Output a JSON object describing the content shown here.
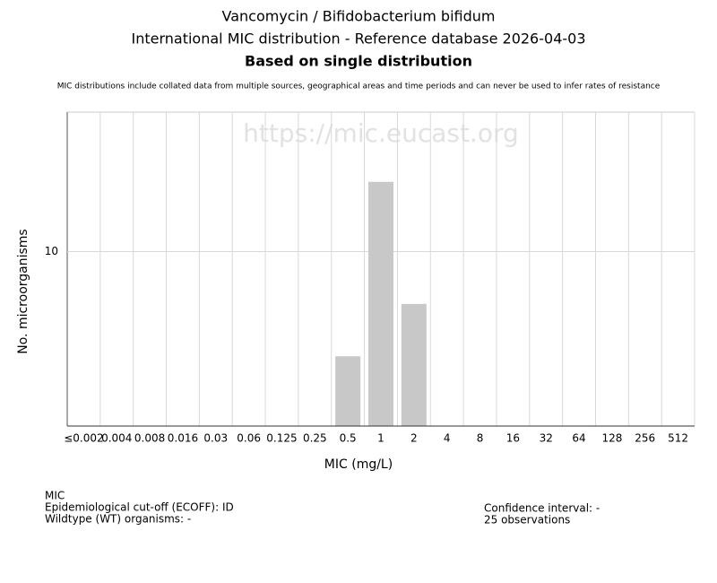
{
  "chart_data": {
    "type": "bar",
    "title": "Vancomycin / Bifidobacterium bifidum",
    "subtitle": "International MIC distribution - Reference database 2026-04-03",
    "subtitle2": "Based on single distribution",
    "note": "MIC distributions include collated data from multiple sources, geographical areas and time periods and can never be used to infer rates of resistance",
    "watermark": "https://mic.eucast.org",
    "x_label": "MIC (mg/L)",
    "y_label": "No. microorganisms",
    "categories": [
      "≤0.002",
      "0.004",
      "0.008",
      "0.016",
      "0.03",
      "0.06",
      "0.125",
      "0.25",
      "0.5",
      "1",
      "2",
      "4",
      "8",
      "16",
      "32",
      "64",
      "128",
      "256",
      "512"
    ],
    "values": [
      0,
      0,
      0,
      0,
      0,
      0,
      0,
      0,
      4,
      14,
      7,
      0,
      0,
      0,
      0,
      0,
      0,
      0,
      0
    ],
    "color": "#c8c8c8",
    "ylim": [
      0,
      18
    ],
    "yticks": [
      10
    ],
    "grid": true,
    "footer_left": [
      "MIC",
      "Epidemiological cut-off (ECOFF): ID",
      "Wildtype (WT) organisms:  -"
    ],
    "footer_right": [
      "Confidence interval: -",
      "25 observations"
    ]
  }
}
